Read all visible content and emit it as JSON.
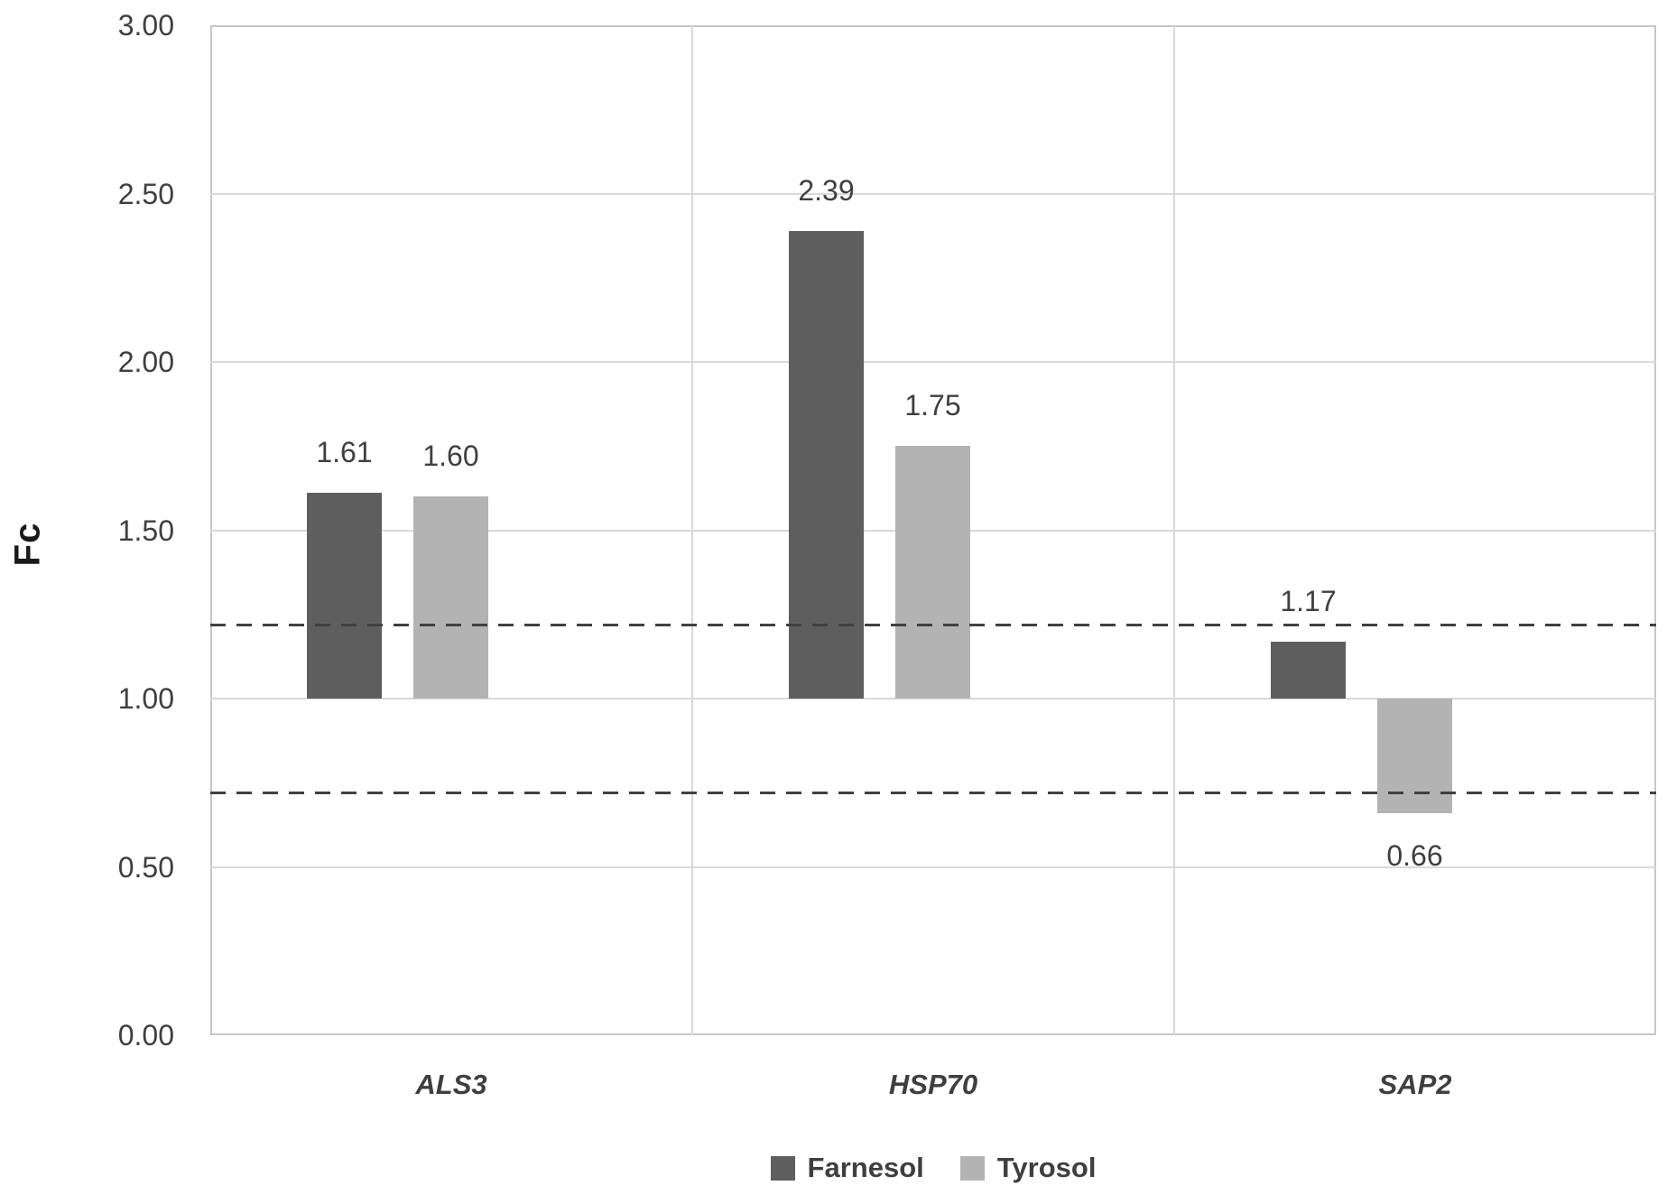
{
  "chart_data": {
    "type": "bar",
    "title": "",
    "ylabel": "Fc",
    "xlabel": "",
    "categories": [
      "ALS3",
      "HSP70",
      "SAP2"
    ],
    "series": [
      {
        "name": "Farnesol",
        "color": "#5e5e5e",
        "values": [
          1.61,
          2.39,
          1.17
        ],
        "labels": [
          "1.61",
          "2.39",
          "1.17"
        ]
      },
      {
        "name": "Tyrosol",
        "color": "#b3b3b3",
        "values": [
          1.6,
          1.75,
          0.66
        ],
        "labels": [
          "1.60",
          "1.75",
          "0.66"
        ]
      }
    ],
    "baseline": 1.0,
    "ylim": [
      0,
      3
    ],
    "ytick_step": 0.5,
    "ytick_labels": [
      "0.00",
      "0.50",
      "1.00",
      "1.50",
      "2.00",
      "2.50",
      "3.00"
    ],
    "threshold_lines": [
      1.22,
      0.72
    ],
    "grid": true,
    "legend_position": "bottom",
    "colors": {
      "gridline": "#d9d9d9",
      "plot_border": "#c6c6c6",
      "threshold_dash": "#404040",
      "text": "#3f3f3f",
      "background": "#ffffff"
    }
  }
}
